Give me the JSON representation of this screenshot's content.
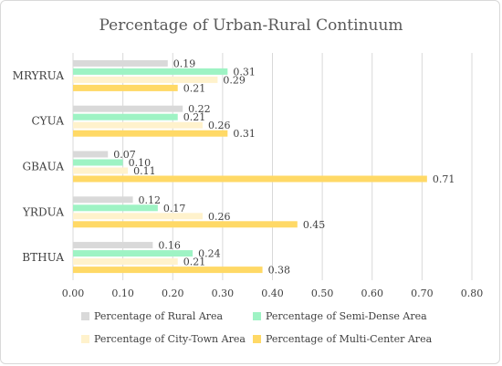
{
  "chart_data": {
    "type": "bar",
    "orientation": "horizontal",
    "title": "Percentage of Urban-Rural Continuum",
    "xlabel": "",
    "ylabel": "",
    "xlim": [
      0,
      0.8
    ],
    "x_ticks": [
      "0.00",
      "0.10",
      "0.20",
      "0.30",
      "0.40",
      "0.50",
      "0.60",
      "0.70",
      "0.80"
    ],
    "grid": true,
    "legend_position": "bottom",
    "categories": [
      "MRYRUA",
      "CYUA",
      "GBAUA",
      "YRDUA",
      "BTHUA"
    ],
    "series": [
      {
        "name": "Percentage of Rural Area",
        "color": "#d9d9d9",
        "values": [
          0.19,
          0.22,
          0.07,
          0.12,
          0.16
        ],
        "labels": [
          "0.19",
          "0.22",
          "0.07",
          "0.12",
          "0.16"
        ]
      },
      {
        "name": "Percentage of Semi-Dense Area",
        "color": "#9ef3c4",
        "values": [
          0.31,
          0.21,
          0.1,
          0.17,
          0.24
        ],
        "labels": [
          "0.31",
          "0.21",
          "0.10",
          "0.17",
          "0.24"
        ]
      },
      {
        "name": "Percentage of City-Town Area",
        "color": "#fff2cc",
        "values": [
          0.29,
          0.26,
          0.11,
          0.26,
          0.21
        ],
        "labels": [
          "0.29",
          "0.26",
          "0.11",
          "0.26",
          "0.21"
        ]
      },
      {
        "name": "Percentage of Multi-Center Area",
        "color": "#ffd966",
        "values": [
          0.21,
          0.31,
          0.71,
          0.45,
          0.38
        ],
        "labels": [
          "0.21",
          "0.31",
          "0.71",
          "0.45",
          "0.38"
        ]
      }
    ]
  }
}
